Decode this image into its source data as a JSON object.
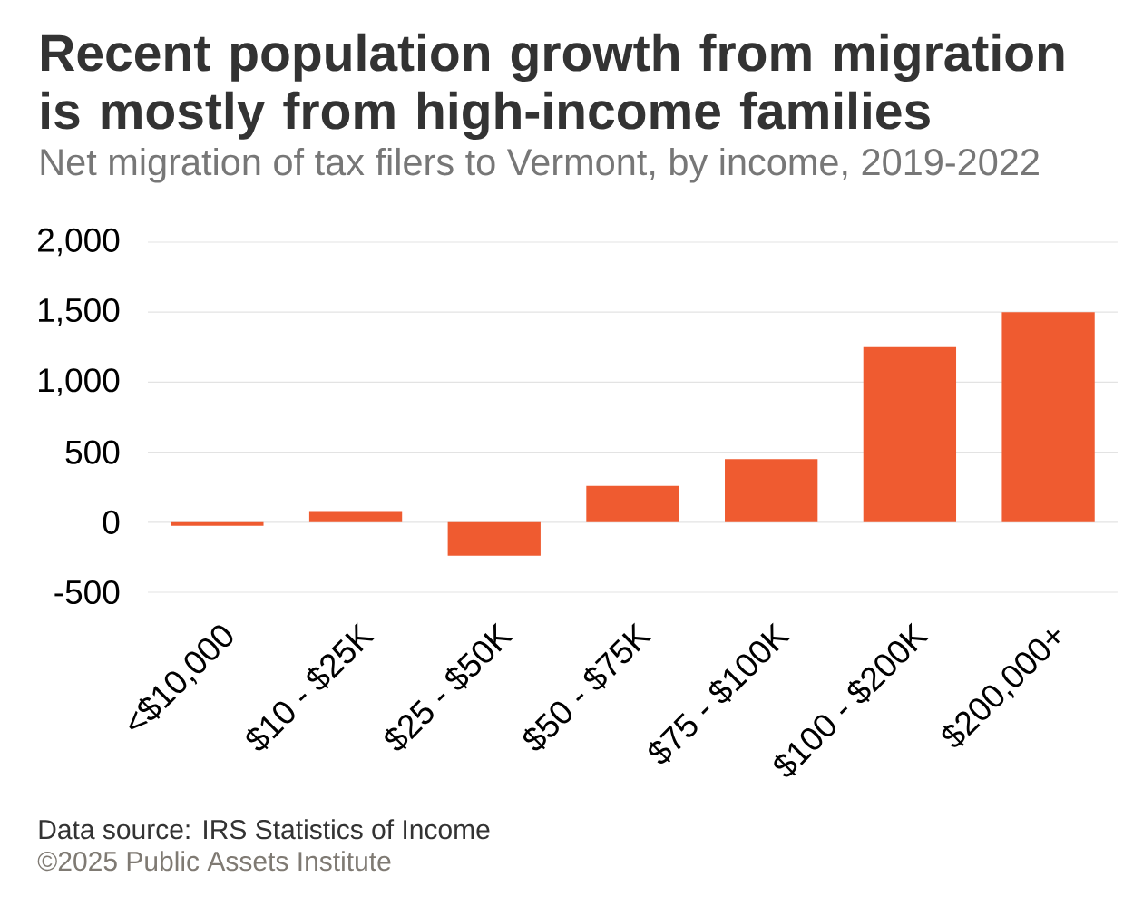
{
  "chart_data": {
    "type": "bar",
    "title": "Recent population growth from migration is mostly from high-income families",
    "subtitle": "Net migration of tax filers to Vermont, by income, 2019-2022",
    "categories": [
      "<$10,000",
      "$10 - $25K",
      "$25 - $50K",
      "$50 - $75K",
      "$75 - $100K",
      "$100 - $200K",
      "$200,000+"
    ],
    "values": [
      -25,
      80,
      -240,
      260,
      450,
      1250,
      1500
    ],
    "color": "#ef5b30",
    "ylim": [
      -500,
      2000
    ],
    "yticks": [
      {
        "value": 2000,
        "label": "2,000"
      },
      {
        "value": 1500,
        "label": "1,500"
      },
      {
        "value": 1000,
        "label": "1,000"
      },
      500,
      0,
      -500
    ],
    "grid": "y",
    "annotations": [
      "Data source: IRS Statistics of Income",
      "©2025 Public Assets Institute"
    ]
  }
}
